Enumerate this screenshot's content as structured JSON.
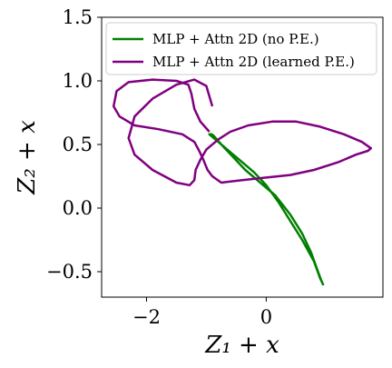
{
  "chart_data": {
    "type": "line",
    "xlabel": "Z_1 + x",
    "ylabel": "Z_2 + x",
    "xlim": [
      -2.75,
      1.95
    ],
    "ylim": [
      -0.7,
      1.5
    ],
    "xticks": [
      -2,
      0
    ],
    "xtick_labels": [
      "−2",
      "0"
    ],
    "yticks": [
      -0.5,
      0.0,
      0.5,
      1.0,
      1.5
    ],
    "ytick_labels": [
      "−0.5",
      "0.0",
      "0.5",
      "1.0",
      "1.5"
    ],
    "grid": false,
    "legend_position": "top-left",
    "series": [
      {
        "name": "MLP + Attn 2D (no P.E.)",
        "color": "#008000",
        "x": [
          -0.9,
          -0.75,
          -0.55,
          -0.35,
          -0.1,
          0.15,
          0.4,
          0.6,
          0.75,
          0.85,
          0.92,
          0.95,
          0.9,
          0.8,
          0.6,
          0.4,
          0.2,
          0.0,
          -0.2,
          -0.4,
          -0.6,
          -0.8,
          -0.95,
          -0.9
        ],
        "y": [
          0.58,
          0.5,
          0.4,
          0.3,
          0.2,
          0.1,
          -0.05,
          -0.2,
          -0.35,
          -0.48,
          -0.57,
          -0.6,
          -0.55,
          -0.42,
          -0.25,
          -0.1,
          0.05,
          0.18,
          0.28,
          0.36,
          0.44,
          0.52,
          0.58,
          0.58
        ]
      },
      {
        "name": "MLP + Attn 2D (learned P.E.)",
        "color": "#800080",
        "x": [
          -0.95,
          -1.1,
          -1.2,
          -1.25,
          -1.3,
          -1.5,
          -1.9,
          -2.3,
          -2.5,
          -2.55,
          -2.45,
          -2.2,
          -1.8,
          -1.4,
          -1.2,
          -1.12,
          -1.05,
          -0.98,
          -0.9,
          -0.75,
          -0.4,
          0.0,
          0.4,
          0.8,
          1.2,
          1.5,
          1.7,
          1.75,
          1.6,
          1.3,
          0.9,
          0.5,
          0.1,
          -0.3,
          -0.6,
          -0.8,
          -1.0,
          -1.1,
          -1.18,
          -1.2,
          -1.28,
          -1.5,
          -1.9,
          -2.2,
          -2.3,
          -2.2,
          -1.9,
          -1.5,
          -1.2,
          -1.0,
          -0.9
        ],
        "y": [
          0.6,
          0.68,
          0.78,
          0.9,
          0.97,
          1.0,
          1.01,
          0.99,
          0.92,
          0.8,
          0.72,
          0.65,
          0.62,
          0.58,
          0.52,
          0.45,
          0.38,
          0.3,
          0.25,
          0.2,
          0.22,
          0.24,
          0.26,
          0.3,
          0.36,
          0.42,
          0.45,
          0.47,
          0.52,
          0.58,
          0.64,
          0.68,
          0.68,
          0.65,
          0.6,
          0.54,
          0.46,
          0.38,
          0.3,
          0.22,
          0.18,
          0.2,
          0.3,
          0.42,
          0.55,
          0.72,
          0.86,
          0.97,
          1.01,
          0.96,
          0.8
        ]
      }
    ]
  }
}
